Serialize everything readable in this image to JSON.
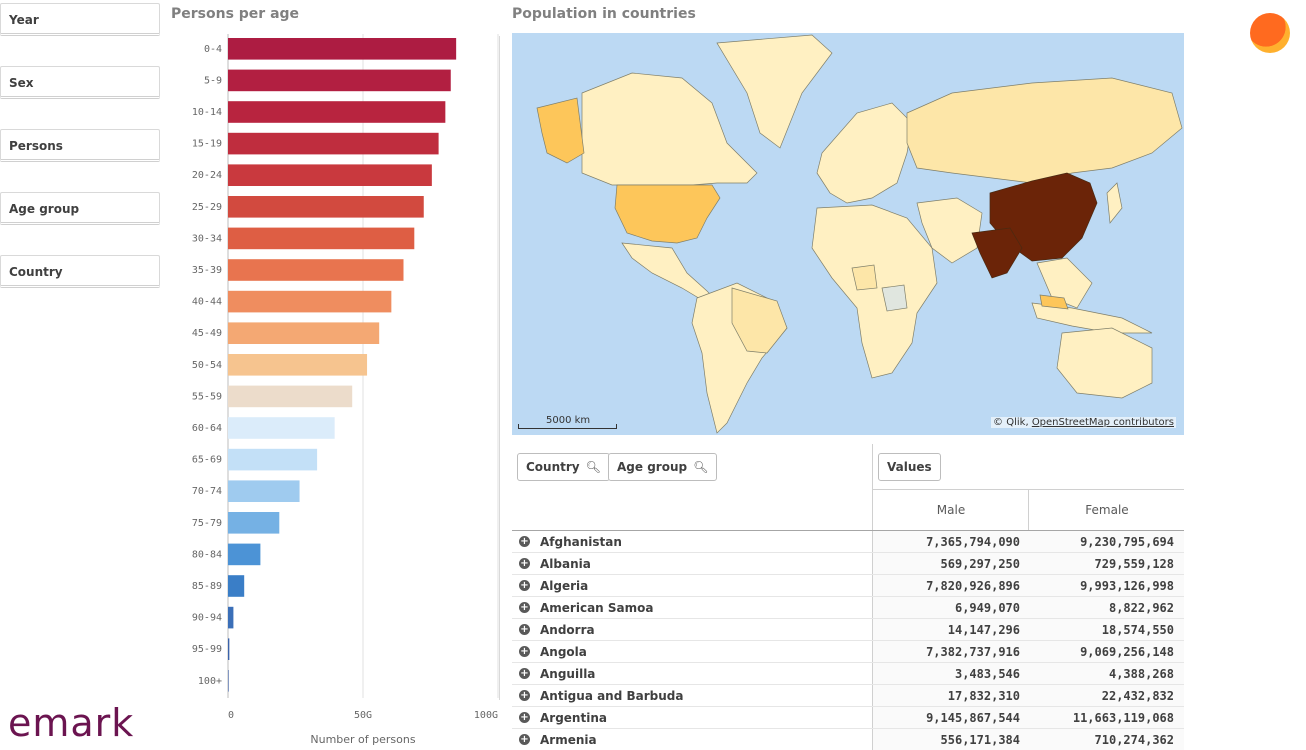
{
  "filters": [
    {
      "label": "Year"
    },
    {
      "label": "Sex"
    },
    {
      "label": "Persons"
    },
    {
      "label": "Age group"
    },
    {
      "label": "Country"
    }
  ],
  "logo": {
    "text": "emark"
  },
  "bar_panel": {
    "title": "Persons per age"
  },
  "map_panel": {
    "title": "Population in countries",
    "scale": "5000 km",
    "attribution_prefix": "© Qlik,",
    "attribution_link": "OpenStreetMap contributors"
  },
  "colors": {
    "highest": "#6b2408",
    "high": "#fdc65a",
    "medium": "#fde6a8",
    "low": "#fff0c2",
    "no_data": "#e0e6df",
    "water": "#bcd9f3"
  },
  "chart_data": {
    "type": "bar",
    "orientation": "horizontal",
    "title": "Persons per age",
    "categories": [
      "0-4",
      "5-9",
      "10-14",
      "15-19",
      "20-24",
      "25-29",
      "30-34",
      "35-39",
      "40-44",
      "45-49",
      "50-54",
      "55-59",
      "60-64",
      "65-69",
      "70-74",
      "75-79",
      "80-84",
      "85-89",
      "90-94",
      "95-99",
      "100+"
    ],
    "values": [
      84.5,
      82.5,
      80.5,
      78,
      75.5,
      72.5,
      69,
      65,
      60.5,
      56,
      51.5,
      46,
      39.5,
      33,
      26.5,
      19,
      12,
      6,
      2,
      0.5,
      0.05
    ],
    "bar_colors": [
      "#ad1c42",
      "#b21f41",
      "#b8243f",
      "#bf2d3e",
      "#c9393e",
      "#d24a3f",
      "#de5e44",
      "#e8744f",
      "#ef8d5f",
      "#f4a873",
      "#f6c48f",
      "#ecdccb",
      "#dbecfa",
      "#c3e0f7",
      "#9fcbef",
      "#75b1e4",
      "#4c93d6",
      "#3a7ec7",
      "#3b6fb8",
      "#3a62aa",
      "#33549b"
    ],
    "xlabel": "Number of persons",
    "ylabel": "",
    "x_ticks": [
      "0",
      "50G",
      "100G"
    ],
    "xlim": [
      0,
      100
    ],
    "x_unit": "G",
    "grid": true
  },
  "table": {
    "dim_chips": [
      "Country",
      "Age group"
    ],
    "measure_chip": "Values",
    "columns": [
      "Male",
      "Female"
    ],
    "rows": [
      {
        "country": "Afghanistan",
        "male": "7,365,794,090",
        "female": "9,230,795,694"
      },
      {
        "country": "Albania",
        "male": "569,297,250",
        "female": "729,559,128"
      },
      {
        "country": "Algeria",
        "male": "7,820,926,896",
        "female": "9,993,126,998"
      },
      {
        "country": "American Samoa",
        "male": "6,949,070",
        "female": "8,822,962"
      },
      {
        "country": "Andorra",
        "male": "14,147,296",
        "female": "18,574,550"
      },
      {
        "country": "Angola",
        "male": "7,382,737,916",
        "female": "9,069,256,148"
      },
      {
        "country": "Anguilla",
        "male": "3,483,546",
        "female": "4,388,268"
      },
      {
        "country": "Antigua and Barbuda",
        "male": "17,832,310",
        "female": "22,432,832"
      },
      {
        "country": "Argentina",
        "male": "9,145,867,544",
        "female": "11,663,119,068"
      },
      {
        "country": "Armenia",
        "male": "556,171,384",
        "female": "710,274,362"
      }
    ]
  }
}
